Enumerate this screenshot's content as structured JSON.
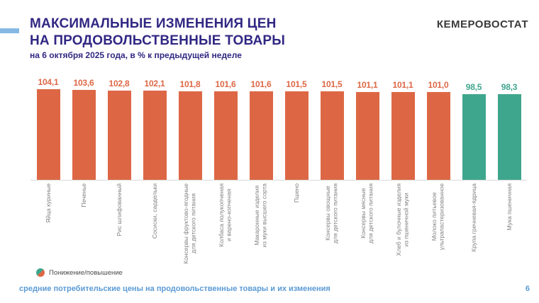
{
  "header": {
    "title_line1": "МАКСИМАЛЬНЫЕ ИЗМЕНЕНИЯ ЦЕН",
    "title_line2": "НА ПРОДОВОЛЬСТВЕННЫЕ ТОВАРЫ",
    "subtitle": "на 6 октября 2025 года, в % к предыдущей неделе",
    "brand": "КЕМЕРОВОСТАТ"
  },
  "chart_data": {
    "type": "bar",
    "title": "Максимальные изменения цен на продовольственные товары",
    "xlabel": "",
    "ylabel": "% к предыдущей неделе",
    "ylim": [
      0,
      104.1
    ],
    "grid": false,
    "legend_position": "bottom-left",
    "categories": [
      "Яйца куриные",
      "Печенье",
      "Рис шлифованный",
      "Сосиски, сардельки",
      "Консервы фруктово-ягодные\nдля детского питания",
      "Колбаса полукопченая\nи варено-копченая",
      "Макаронные изделия\nиз муки высшего сорта",
      "Пшено",
      "Консервы овощные\nдля детского питания",
      "Консервы мясные\nдля детского питания",
      "Хлеб и булочные изделия\nиз пшеничной муки",
      "Молоко питьевое\nультрапастеризованное",
      "Крупа гречневая-ядрица",
      "Мука пшеничная"
    ],
    "values": [
      104.1,
      103.6,
      102.8,
      102.1,
      101.8,
      101.6,
      101.6,
      101.5,
      101.5,
      101.1,
      101.1,
      101.0,
      98.5,
      98.3
    ],
    "value_labels": [
      "104,1",
      "103,6",
      "102,8",
      "102,1",
      "101,8",
      "101,6",
      "101,6",
      "101,5",
      "101,5",
      "101,1",
      "101,1",
      "101,0",
      "98,5",
      "98,3"
    ],
    "threshold": 100,
    "colors": {
      "increase": "#DD6745",
      "decrease": "#3FA68E"
    },
    "legend": {
      "label": "Понижение/повышение"
    }
  },
  "footer": {
    "caption": "средние потребительские цены на продовольственные товары и их изменения",
    "page": "6"
  }
}
